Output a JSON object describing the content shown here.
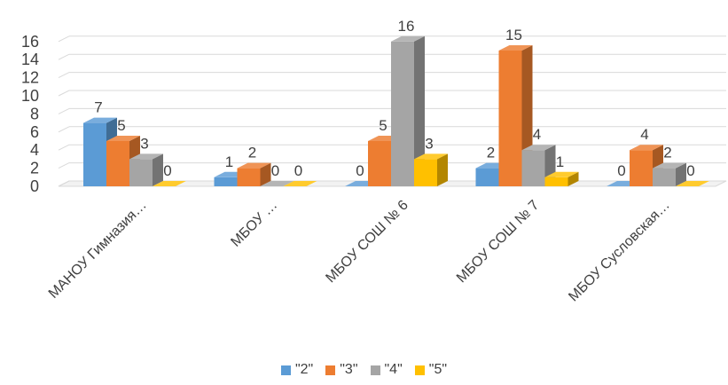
{
  "chart_data": {
    "type": "bar",
    "variant": "3d-clustered-column",
    "title": "",
    "xlabel": "",
    "ylabel": "",
    "ylim": [
      0,
      16
    ],
    "yticks": [
      0,
      2,
      4,
      6,
      8,
      10,
      12,
      14,
      16
    ],
    "grid": true,
    "legend_position": "bottom",
    "categories": [
      "МАНОУ Гимназия…",
      "МБОУ …",
      "МБОУ СОШ № 6",
      "МБОУ СОШ № 7",
      "МБОУ Сусловская…"
    ],
    "series": [
      {
        "name": "\"2\"",
        "color": "#5B9BD5",
        "values": [
          7,
          1,
          0,
          2,
          0
        ]
      },
      {
        "name": "\"3\"",
        "color": "#ED7D31",
        "values": [
          5,
          2,
          5,
          15,
          4
        ]
      },
      {
        "name": "\"4\"",
        "color": "#A5A5A5",
        "values": [
          3,
          0,
          16,
          4,
          2
        ]
      },
      {
        "name": "\"5\"",
        "color": "#FFC000",
        "values": [
          0,
          0,
          3,
          1,
          0
        ]
      }
    ]
  }
}
